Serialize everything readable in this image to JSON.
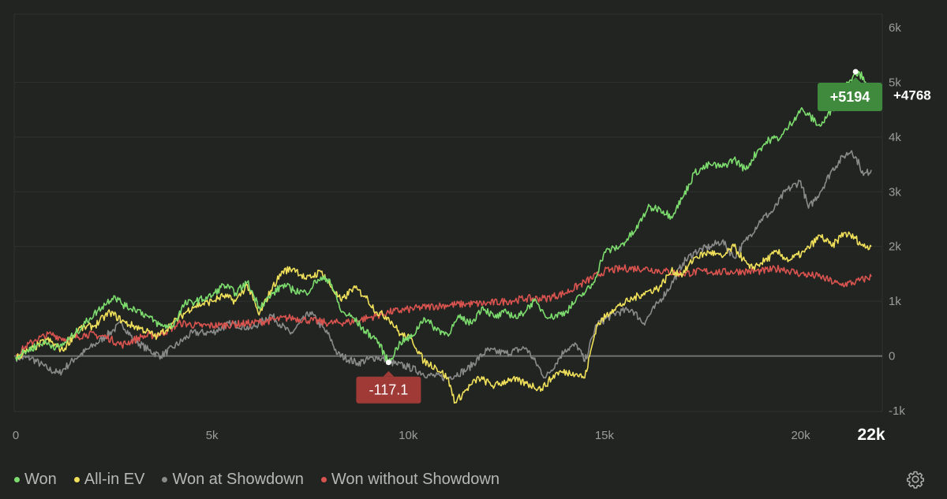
{
  "chart_data": {
    "type": "line",
    "xlim": [
      0,
      22000
    ],
    "ylim": [
      -1000,
      6000
    ],
    "x_ticks": [
      {
        "value": 0,
        "label": "0"
      },
      {
        "value": 5000,
        "label": "5k"
      },
      {
        "value": 10000,
        "label": "10k"
      },
      {
        "value": 15000,
        "label": "15k"
      },
      {
        "value": 20000,
        "label": "20k"
      },
      {
        "value": 21800,
        "label": "22k",
        "emphasis": true
      }
    ],
    "y_ticks": [
      {
        "value": 6000,
        "label": "6k"
      },
      {
        "value": 5000,
        "label": "5k"
      },
      {
        "value": 4000,
        "label": "4k"
      },
      {
        "value": 3000,
        "label": "3k"
      },
      {
        "value": 2000,
        "label": "2k"
      },
      {
        "value": 1000,
        "label": "1k"
      },
      {
        "value": 0,
        "label": "0"
      },
      {
        "value": -1000,
        "label": "-1k"
      }
    ],
    "series": [
      {
        "name": "Won at Showdown",
        "color": "#8a8a8a",
        "points": [
          [
            0,
            -30
          ],
          [
            400,
            -40
          ],
          [
            800,
            -230
          ],
          [
            1100,
            -320
          ],
          [
            1500,
            -50
          ],
          [
            2000,
            200
          ],
          [
            2500,
            480
          ],
          [
            2700,
            600
          ],
          [
            3000,
            300
          ],
          [
            3400,
            100
          ],
          [
            3700,
            0
          ],
          [
            4000,
            150
          ],
          [
            4500,
            420
          ],
          [
            5000,
            430
          ],
          [
            5500,
            600
          ],
          [
            6000,
            500
          ],
          [
            6500,
            750
          ],
          [
            7000,
            400
          ],
          [
            7500,
            800
          ],
          [
            8000,
            350
          ],
          [
            8200,
            30
          ],
          [
            8700,
            -130
          ],
          [
            9200,
            -20
          ],
          [
            9700,
            -150
          ],
          [
            10000,
            -200
          ],
          [
            10500,
            -350
          ],
          [
            11000,
            -400
          ],
          [
            11500,
            -250
          ],
          [
            12000,
            100
          ],
          [
            12500,
            50
          ],
          [
            13000,
            150
          ],
          [
            13500,
            -400
          ],
          [
            14000,
            120
          ],
          [
            14300,
            200
          ],
          [
            14500,
            -100
          ],
          [
            14800,
            580
          ],
          [
            15300,
            790
          ],
          [
            15700,
            850
          ],
          [
            16000,
            600
          ],
          [
            16400,
            1000
          ],
          [
            16700,
            1300
          ],
          [
            17000,
            1700
          ],
          [
            17300,
            1900
          ],
          [
            17700,
            2000
          ],
          [
            18000,
            2100
          ],
          [
            18300,
            1800
          ],
          [
            18700,
            2200
          ],
          [
            19000,
            2500
          ],
          [
            19300,
            2650
          ],
          [
            19600,
            3000
          ],
          [
            20000,
            3200
          ],
          [
            20200,
            2700
          ],
          [
            20500,
            3000
          ],
          [
            20800,
            3400
          ],
          [
            21100,
            3650
          ],
          [
            21300,
            3750
          ],
          [
            21500,
            3500
          ],
          [
            21600,
            3300
          ],
          [
            21800,
            3400
          ]
        ]
      },
      {
        "name": "Won without Showdown",
        "color": "#d9534f",
        "points": [
          [
            0,
            20
          ],
          [
            500,
            300
          ],
          [
            900,
            400
          ],
          [
            1300,
            300
          ],
          [
            1800,
            400
          ],
          [
            2300,
            350
          ],
          [
            2700,
            200
          ],
          [
            3200,
            350
          ],
          [
            3700,
            400
          ],
          [
            4200,
            600
          ],
          [
            4700,
            550
          ],
          [
            5200,
            560
          ],
          [
            6000,
            600
          ],
          [
            6500,
            650
          ],
          [
            7000,
            700
          ],
          [
            7500,
            650
          ],
          [
            8000,
            600
          ],
          [
            8500,
            620
          ],
          [
            9000,
            700
          ],
          [
            9500,
            800
          ],
          [
            10000,
            850
          ],
          [
            10500,
            900
          ],
          [
            11000,
            930
          ],
          [
            11500,
            950
          ],
          [
            12000,
            960
          ],
          [
            12500,
            1000
          ],
          [
            13000,
            1050
          ],
          [
            13500,
            1050
          ],
          [
            14000,
            1150
          ],
          [
            14500,
            1350
          ],
          [
            15000,
            1550
          ],
          [
            15500,
            1600
          ],
          [
            16000,
            1600
          ],
          [
            16500,
            1550
          ],
          [
            17000,
            1500
          ],
          [
            17500,
            1550
          ],
          [
            18000,
            1530
          ],
          [
            18500,
            1550
          ],
          [
            19000,
            1550
          ],
          [
            19500,
            1600
          ],
          [
            20000,
            1500
          ],
          [
            20500,
            1450
          ],
          [
            21000,
            1300
          ],
          [
            21400,
            1350
          ],
          [
            21800,
            1450
          ]
        ]
      },
      {
        "name": "All-in EV",
        "color": "#f0e05a",
        "points": [
          [
            0,
            -30
          ],
          [
            400,
            120
          ],
          [
            800,
            300
          ],
          [
            1200,
            100
          ],
          [
            1600,
            500
          ],
          [
            2000,
            550
          ],
          [
            2400,
            800
          ],
          [
            2800,
            600
          ],
          [
            3200,
            500
          ],
          [
            3600,
            350
          ],
          [
            4000,
            600
          ],
          [
            4500,
            900
          ],
          [
            5000,
            1000
          ],
          [
            5300,
            1100
          ],
          [
            5600,
            1000
          ],
          [
            5900,
            1300
          ],
          [
            6200,
            750
          ],
          [
            6500,
            1200
          ],
          [
            6800,
            1550
          ],
          [
            7100,
            1600
          ],
          [
            7400,
            1400
          ],
          [
            7800,
            1550
          ],
          [
            8000,
            1300
          ],
          [
            8300,
            1000
          ],
          [
            8600,
            1250
          ],
          [
            8900,
            1100
          ],
          [
            9200,
            800
          ],
          [
            9500,
            700
          ],
          [
            9800,
            400
          ],
          [
            10100,
            300
          ],
          [
            10400,
            -100
          ],
          [
            10700,
            -200
          ],
          [
            11000,
            -400
          ],
          [
            11200,
            -850
          ],
          [
            11500,
            -600
          ],
          [
            11800,
            -400
          ],
          [
            12200,
            -550
          ],
          [
            12600,
            -420
          ],
          [
            13000,
            -500
          ],
          [
            13400,
            -600
          ],
          [
            13800,
            -300
          ],
          [
            14200,
            -300
          ],
          [
            14500,
            -400
          ],
          [
            14800,
            550
          ],
          [
            15200,
            850
          ],
          [
            15600,
            1000
          ],
          [
            16000,
            1150
          ],
          [
            16400,
            1250
          ],
          [
            16700,
            1550
          ],
          [
            17000,
            1500
          ],
          [
            17300,
            1800
          ],
          [
            17700,
            1900
          ],
          [
            18000,
            1800
          ],
          [
            18300,
            2000
          ],
          [
            18700,
            1600
          ],
          [
            19000,
            1700
          ],
          [
            19400,
            1900
          ],
          [
            19700,
            1750
          ],
          [
            20100,
            1900
          ],
          [
            20500,
            2200
          ],
          [
            20800,
            2000
          ],
          [
            21100,
            2250
          ],
          [
            21400,
            2150
          ],
          [
            21600,
            2000
          ],
          [
            21800,
            2000
          ]
        ]
      },
      {
        "name": "Won",
        "color": "#7ddc6e",
        "points": [
          [
            0,
            -20
          ],
          [
            300,
            100
          ],
          [
            700,
            250
          ],
          [
            1100,
            150
          ],
          [
            1500,
            400
          ],
          [
            1900,
            700
          ],
          [
            2200,
            900
          ],
          [
            2500,
            1100
          ],
          [
            2800,
            900
          ],
          [
            3100,
            850
          ],
          [
            3400,
            700
          ],
          [
            3700,
            550
          ],
          [
            4000,
            550
          ],
          [
            4300,
            950
          ],
          [
            4600,
            1000
          ],
          [
            5000,
            1100
          ],
          [
            5300,
            1300
          ],
          [
            5600,
            1150
          ],
          [
            5900,
            1350
          ],
          [
            6200,
            900
          ],
          [
            6500,
            1100
          ],
          [
            6800,
            1300
          ],
          [
            7100,
            1200
          ],
          [
            7400,
            1150
          ],
          [
            7700,
            1400
          ],
          [
            8000,
            1400
          ],
          [
            8300,
            800
          ],
          [
            8600,
            700
          ],
          [
            8900,
            450
          ],
          [
            9200,
            300
          ],
          [
            9500,
            -117
          ],
          [
            9800,
            250
          ],
          [
            10100,
            350
          ],
          [
            10400,
            700
          ],
          [
            10700,
            500
          ],
          [
            11000,
            400
          ],
          [
            11300,
            700
          ],
          [
            11600,
            600
          ],
          [
            11900,
            900
          ],
          [
            12200,
            700
          ],
          [
            12500,
            800
          ],
          [
            12800,
            700
          ],
          [
            13200,
            1000
          ],
          [
            13600,
            700
          ],
          [
            14000,
            800
          ],
          [
            14400,
            1100
          ],
          [
            14700,
            1300
          ],
          [
            15000,
            1900
          ],
          [
            15400,
            2000
          ],
          [
            15800,
            2300
          ],
          [
            16100,
            2700
          ],
          [
            16400,
            2700
          ],
          [
            16700,
            2550
          ],
          [
            17000,
            2900
          ],
          [
            17300,
            3350
          ],
          [
            17700,
            3500
          ],
          [
            18000,
            3450
          ],
          [
            18300,
            3600
          ],
          [
            18600,
            3400
          ],
          [
            18900,
            3750
          ],
          [
            19200,
            3950
          ],
          [
            19500,
            4000
          ],
          [
            19700,
            4200
          ],
          [
            20000,
            4500
          ],
          [
            20200,
            4400
          ],
          [
            20500,
            4200
          ],
          [
            20800,
            4500
          ],
          [
            21000,
            4700
          ],
          [
            21200,
            5000
          ],
          [
            21400,
            5194
          ],
          [
            21600,
            5100
          ],
          [
            21800,
            4768
          ]
        ]
      }
    ],
    "annotations": {
      "min_value": -117.1,
      "min_x": 9500,
      "min_label": "-117.1",
      "max_value": 5194,
      "max_x": 21400,
      "max_label": "+5194",
      "end_label": "+4768",
      "end_value": 4768
    }
  },
  "legend": {
    "items": [
      {
        "label": "Won",
        "color": "#7ddc6e"
      },
      {
        "label": "All-in EV",
        "color": "#f0e05a"
      },
      {
        "label": "Won at Showdown",
        "color": "#8a8a8a"
      },
      {
        "label": "Won without Showdown",
        "color": "#d9534f"
      }
    ]
  },
  "toolbar": {
    "settings_icon": "gear-icon"
  }
}
